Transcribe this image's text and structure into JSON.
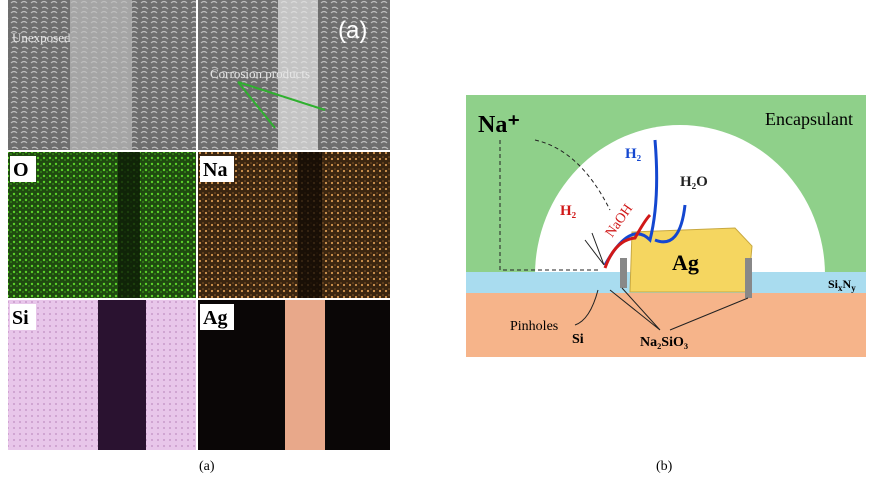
{
  "panel_a": {
    "sem_left_label": "Unexposed",
    "sem_right_label": "Corrosion products",
    "panel_tag": "(a)",
    "maps": [
      "O",
      "Na",
      "Si",
      "Ag"
    ],
    "caption": "(a)"
  },
  "panel_b": {
    "ion": "Na⁺",
    "encapsulant": "Encapsulant",
    "h2_blue": "H₂",
    "h2o": "H₂O",
    "h2_red": "H₂",
    "naoh": "NaOH",
    "ag": "Ag",
    "nitride": [
      "Si",
      "x",
      "N",
      "y"
    ],
    "pinholes": "Pinholes",
    "si": "Si",
    "silicate": "Na₂SiO₃",
    "caption": "(b)"
  }
}
